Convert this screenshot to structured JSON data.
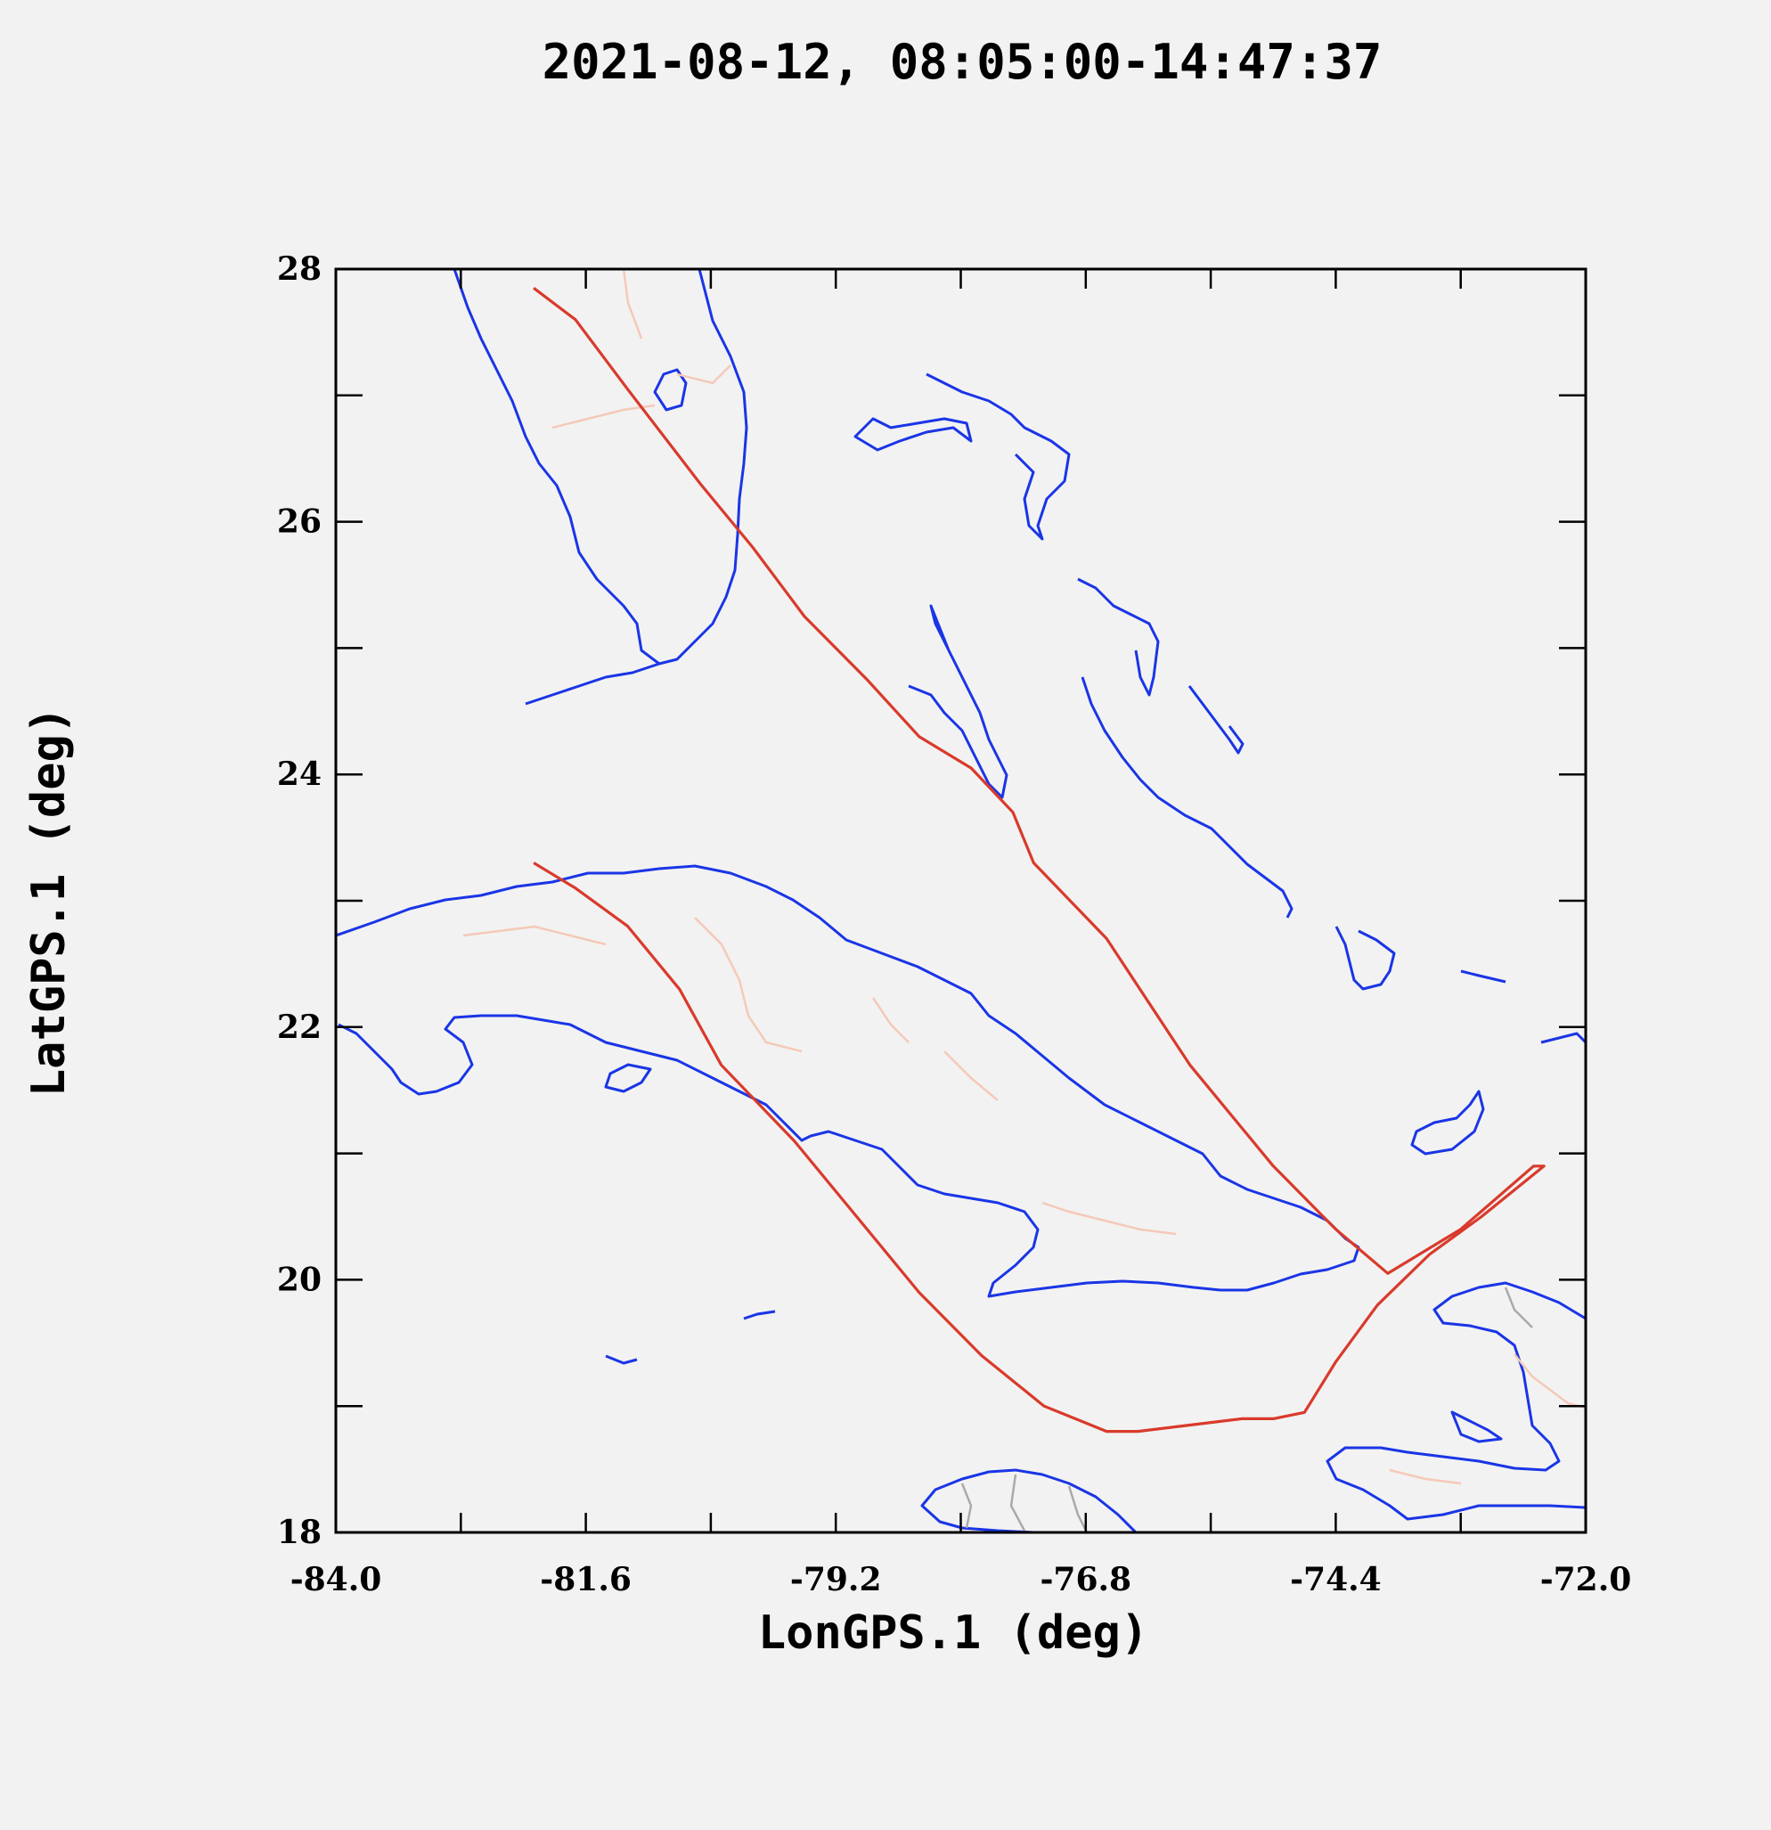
{
  "title": "2021-08-12, 08:05:00-14:47:37",
  "x_axis": {
    "label": "LonGPS.1 (deg)",
    "min": -84.0,
    "max": -72.0,
    "major_ticks": [
      "-84.0",
      "-81.6",
      "-79.2",
      "-76.8",
      "-74.4",
      "-72.0"
    ],
    "major_values": [
      -84.0,
      -81.6,
      -79.2,
      -76.8,
      -74.4,
      -72.0
    ],
    "minor_step": 1.2
  },
  "y_axis": {
    "label": "LatGPS.1 (deg)",
    "min": 18,
    "max": 28,
    "major_ticks": [
      "18",
      "20",
      "22",
      "24",
      "26",
      "28"
    ],
    "major_values": [
      18,
      20,
      22,
      24,
      26,
      28
    ],
    "minor_step": 1
  },
  "colors": {
    "track": "#d93a2b",
    "coastline": "#1a35e6",
    "borders": "#f5c9b8",
    "background": "#f2f2f2"
  },
  "flight_track": {
    "lon": [
      -82.1,
      -81.7,
      -81.2,
      -80.5,
      -80.0,
      -79.5,
      -78.9,
      -78.4,
      -77.9,
      -77.5,
      -77.3,
      -76.6,
      -75.8,
      -75.0,
      -74.4,
      -73.9,
      -73.4,
      -73.2,
      -72.5,
      -72.4,
      -73.0,
      -73.5,
      -74.0,
      -74.4,
      -74.7,
      -75.0,
      -75.3,
      -75.8,
      -76.3,
      -76.6,
      -76.9,
      -77.2,
      -77.8,
      -78.4,
      -79.0,
      -79.6,
      -80.3,
      -80.7,
      -81.2,
      -81.7,
      -82.1
    ],
    "lat": [
      27.85,
      27.6,
      27.05,
      26.3,
      25.8,
      25.25,
      24.75,
      24.3,
      24.05,
      23.7,
      23.3,
      22.7,
      21.7,
      20.9,
      20.4,
      20.05,
      20.3,
      20.4,
      20.9,
      20.9,
      20.5,
      20.2,
      19.8,
      19.35,
      18.95,
      18.9,
      18.9,
      18.85,
      18.8,
      18.8,
      18.9,
      19.0,
      19.4,
      19.9,
      20.5,
      21.1,
      21.7,
      22.3,
      22.8,
      23.1,
      23.3
    ]
  }
}
